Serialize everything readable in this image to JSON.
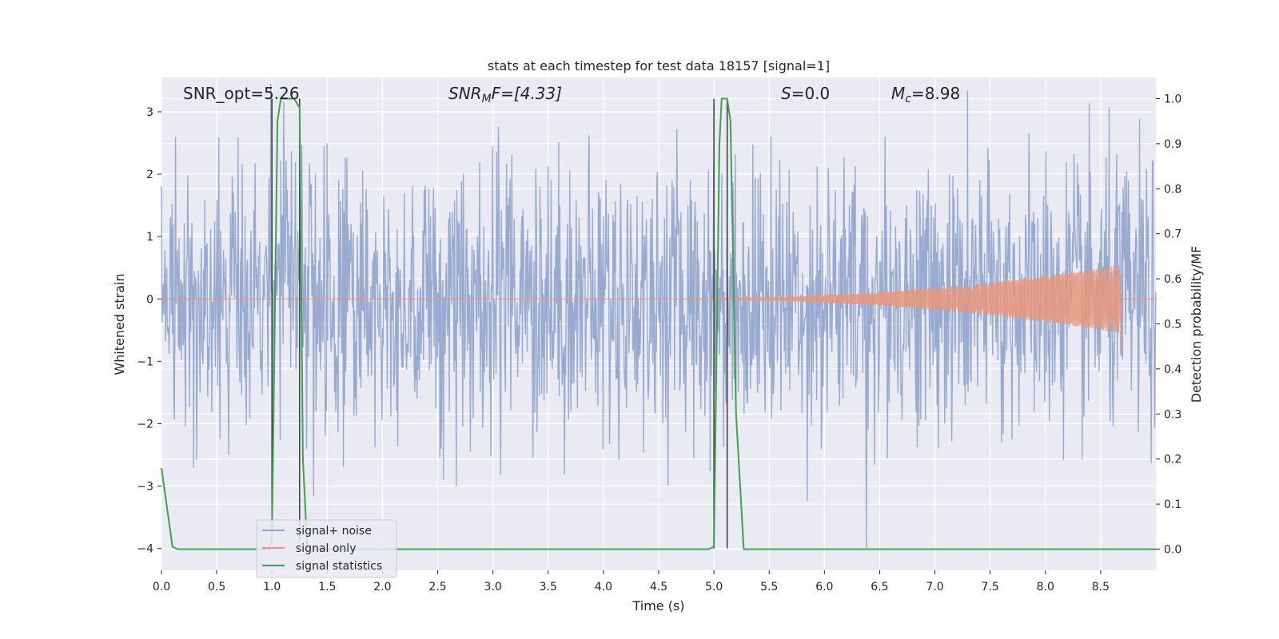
{
  "chart_data": {
    "type": "line",
    "title": "stats at each timestep for test data 18157 [signal=1]",
    "xlabel": "Time (s)",
    "ylabel": "Whitened strain",
    "y2label": "Detection probability/MF",
    "xlim": [
      0.0,
      9.0
    ],
    "ylim": [
      -4.35,
      3.55
    ],
    "y2lim": [
      -0.047,
      1.047
    ],
    "xticks": [
      "0.0",
      "0.5",
      "1.0",
      "1.5",
      "2.0",
      "2.5",
      "3.0",
      "3.5",
      "4.0",
      "4.5",
      "5.0",
      "5.5",
      "6.0",
      "6.5",
      "7.0",
      "7.5",
      "8.0",
      "8.5"
    ],
    "yticks": [
      "3",
      "2",
      "1",
      "0",
      "−1",
      "−2",
      "−3",
      "−4"
    ],
    "y2ticks": [
      "1.0",
      "0.9",
      "0.8",
      "0.7",
      "0.6",
      "0.5",
      "0.4",
      "0.3",
      "0.2",
      "0.1",
      "0.0"
    ],
    "grid": true,
    "colors": {
      "noise": "#8fa3cc",
      "signal": "#e8967a",
      "stat": "#3fa04f",
      "vline": "#444444",
      "panel": "#eaeaf2"
    },
    "annotations": {
      "snr_opt": "SNR_opt=5.26",
      "snr_mf": {
        "main": "SNR",
        "sub": "M",
        "rest": "F=[4.33]"
      },
      "s": {
        "main": "S",
        "rest": "=0.0"
      },
      "mc": {
        "main": "M",
        "sub": "c",
        "rest": "=8.98"
      }
    },
    "legend": {
      "placement": "lower-left",
      "entries": [
        "signal+ noise",
        "signal only",
        "signal statistics"
      ]
    },
    "series": [
      {
        "name": "signal+ noise",
        "kind": "noise",
        "x_range": [
          0.0,
          9.0
        ],
        "approx_std": 1.0,
        "max_abs": 4.0
      },
      {
        "name": "signal only",
        "kind": "chirp",
        "x_start": 4.5,
        "x_end": 8.68,
        "peak_amplitude": 0.55
      },
      {
        "name": "signal statistics",
        "axis": "right",
        "x": [
          0.0,
          0.1,
          0.15,
          0.5,
          0.98,
          1.0,
          1.05,
          1.08,
          1.2,
          1.25,
          1.28,
          1.32,
          1.4,
          4.5,
          4.95,
          5.0,
          5.05,
          5.07,
          5.12,
          5.15,
          5.2,
          5.27,
          5.5,
          9.0
        ],
        "y": [
          0.18,
          0.005,
          0.0,
          0.0,
          0.0,
          0.03,
          0.95,
          1.0,
          1.0,
          0.98,
          0.2,
          0.0,
          0.0,
          0.0,
          0.0,
          0.005,
          0.9,
          1.0,
          1.0,
          0.95,
          0.3,
          0.0,
          0.0,
          0.0
        ]
      }
    ],
    "vlines": [
      {
        "x": 1.0,
        "y_top": 1.0,
        "y_bottom": -3.9
      },
      {
        "x": 1.25,
        "y_top": 1.0,
        "y_bottom": -3.9
      },
      {
        "x": 5.0,
        "y_top": 1.0,
        "y_bottom": -4.0
      },
      {
        "x": 5.12,
        "y_top": 1.0,
        "y_bottom": -4.0
      }
    ]
  }
}
